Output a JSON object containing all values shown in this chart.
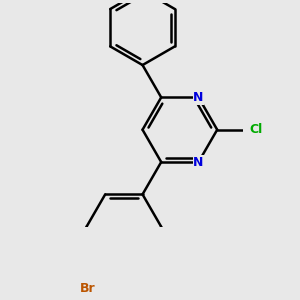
{
  "background_color": "#e8e8e8",
  "bond_color": "#000000",
  "nitrogen_color": "#0000dd",
  "bromine_color": "#bb5500",
  "chlorine_color": "#00aa00",
  "bond_width": 1.8,
  "figsize": [
    3.0,
    3.0
  ],
  "dpi": 100,
  "xlim": [
    -2.8,
    2.2
  ],
  "ylim": [
    -3.2,
    2.8
  ]
}
